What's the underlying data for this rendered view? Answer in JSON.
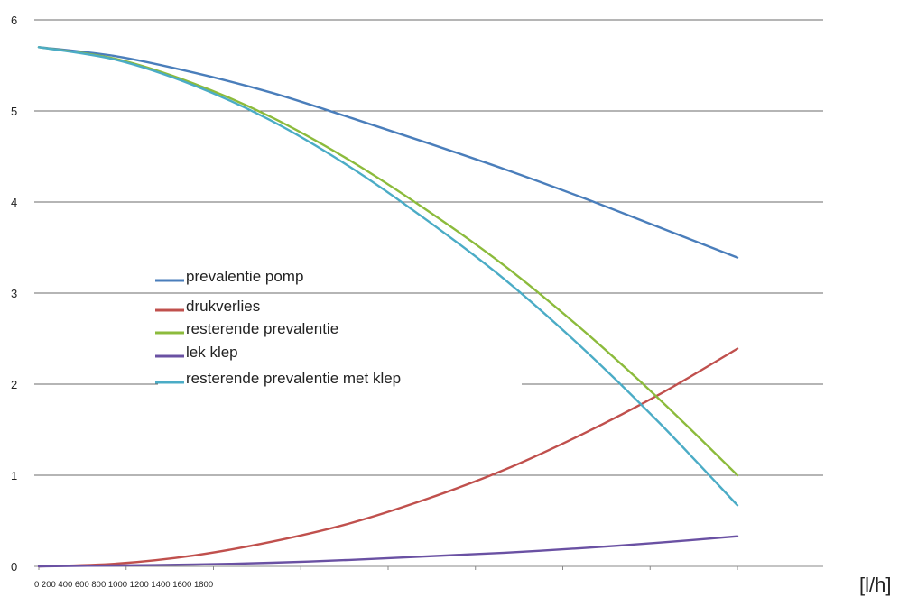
{
  "chart_data": {
    "type": "line",
    "title": "",
    "xlabel": "",
    "ylabel": "",
    "x_unit": "[l/h]",
    "x_tick_text": "0 200 400 600 800 1000 1200 1400 1600 1800",
    "y_ticks": [
      "0",
      "1",
      "2",
      "3",
      "4",
      "5",
      "6"
    ],
    "ylim": [
      0,
      6
    ],
    "xlim": [
      0,
      1800
    ],
    "grid": "horizontal",
    "legend_position": "center-left",
    "x": [
      0,
      200,
      400,
      600,
      800,
      1000,
      1200,
      1400,
      1600,
      1800
    ],
    "series": [
      {
        "name": "prevalentie pomp",
        "color": "#4a7ebb",
        "values": [
          5.7,
          5.6,
          5.42,
          5.2,
          4.93,
          4.65,
          4.36,
          4.05,
          3.72,
          3.39
        ]
      },
      {
        "name": "drukverlies",
        "color": "#c0504d",
        "values": [
          0.0,
          0.03,
          0.12,
          0.27,
          0.47,
          0.74,
          1.06,
          1.45,
          1.89,
          2.39
        ]
      },
      {
        "name": "resterende prevalentie",
        "color": "#8cbb3c",
        "values": [
          5.7,
          5.57,
          5.3,
          4.93,
          4.46,
          3.91,
          3.3,
          2.6,
          1.83,
          1.0
        ]
      },
      {
        "name": "lek klep",
        "color": "#6a51a3",
        "values": [
          0.0,
          0.01,
          0.02,
          0.04,
          0.07,
          0.11,
          0.15,
          0.2,
          0.26,
          0.33
        ]
      },
      {
        "name": "resterende prevalentie met klep",
        "color": "#4bacc6",
        "values": [
          5.7,
          5.56,
          5.28,
          4.89,
          4.39,
          3.8,
          3.15,
          2.4,
          1.57,
          0.67
        ]
      }
    ]
  }
}
